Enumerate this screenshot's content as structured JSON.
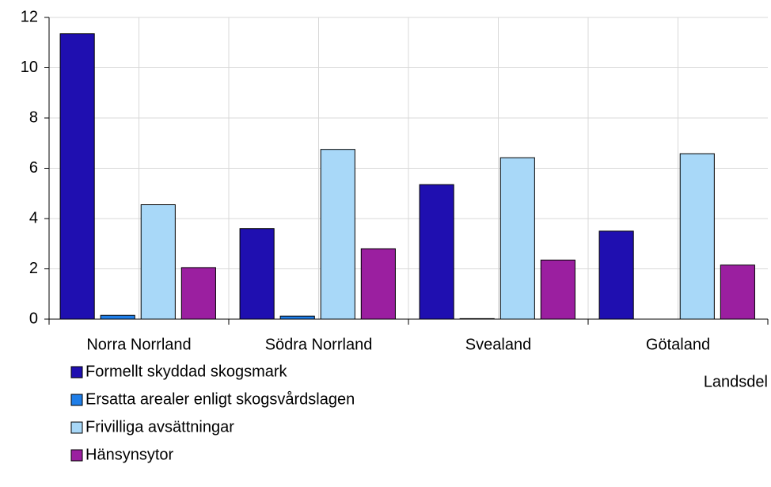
{
  "chart_data": {
    "type": "bar",
    "x_label": "Landsdel",
    "categories": [
      "Norra Norrland",
      "Södra Norrland",
      "Svealand",
      "Götaland"
    ],
    "series": [
      {
        "name": "Formellt skyddad skogsmark",
        "color": "#1f0fb0",
        "values": [
          11.35,
          3.6,
          5.35,
          3.5
        ]
      },
      {
        "name": "Ersatta arealer enligt skogsvårdslagen",
        "color": "#1f7ee8",
        "values": [
          0.15,
          0.12,
          0.02,
          0
        ]
      },
      {
        "name": "Frivilliga avsättningar",
        "color": "#a8d8f8",
        "values": [
          4.55,
          6.75,
          6.42,
          6.58
        ]
      },
      {
        "name": "Hänsynsytor",
        "color": "#9b1fa0",
        "values": [
          2.05,
          2.8,
          2.35,
          2.15
        ]
      }
    ],
    "ylim": [
      0,
      12
    ],
    "yticks": [
      0,
      2,
      4,
      6,
      8,
      10,
      12
    ],
    "grid": true,
    "legend": "bottom-left"
  }
}
